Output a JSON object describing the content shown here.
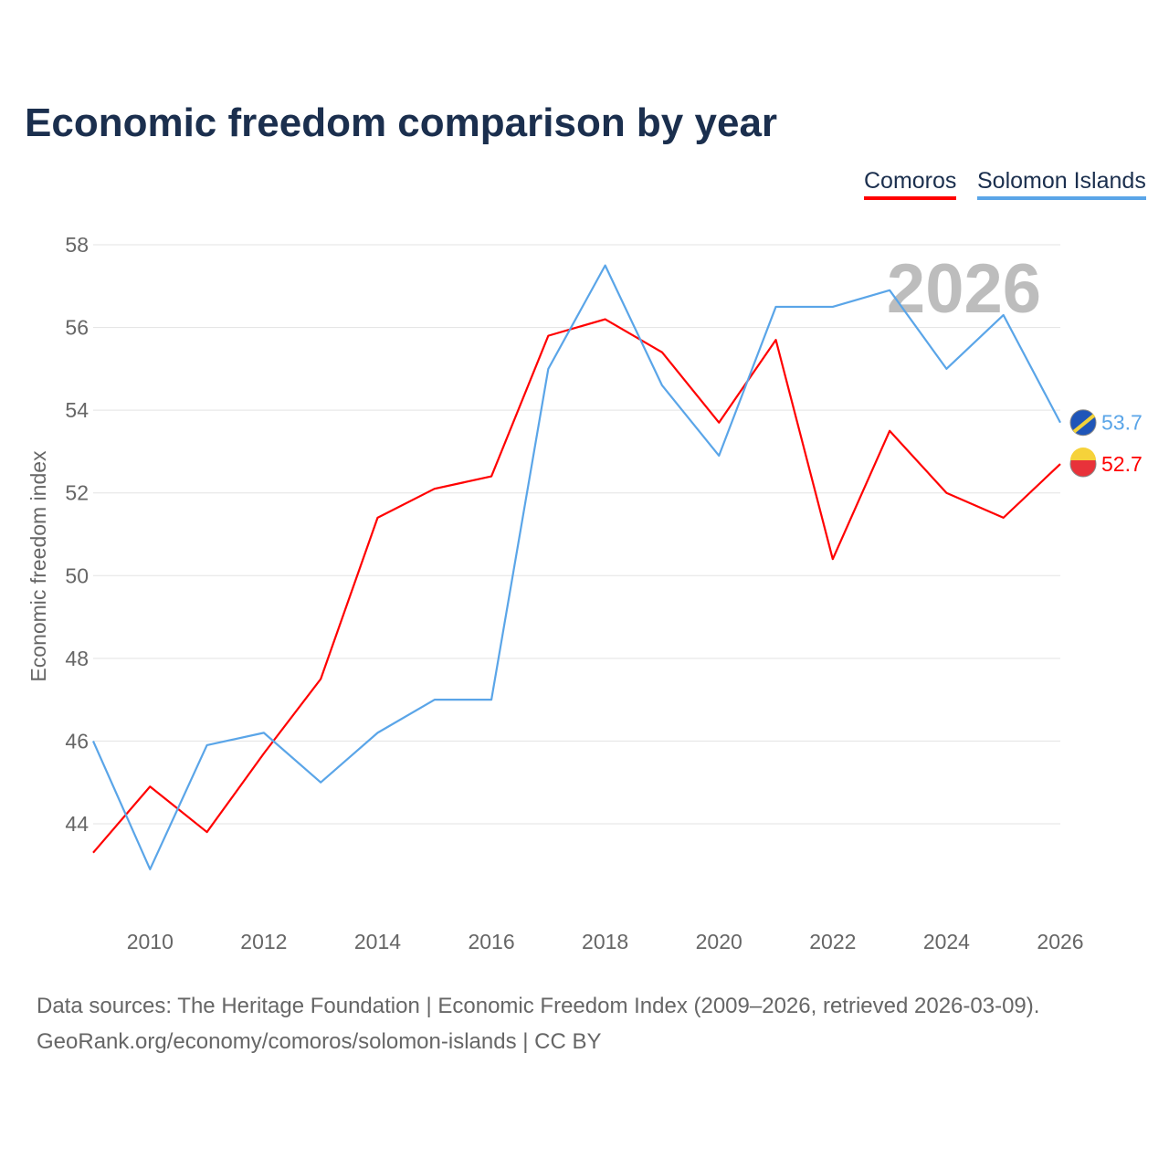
{
  "chart_data": {
    "type": "line",
    "title": "Economic freedom comparison by year",
    "xlabel": "",
    "ylabel": "Economic freedom index",
    "x": [
      2009,
      2010,
      2011,
      2012,
      2013,
      2014,
      2015,
      2016,
      2017,
      2018,
      2019,
      2020,
      2021,
      2022,
      2023,
      2024,
      2025,
      2026
    ],
    "xticks": [
      "2010",
      "2012",
      "2014",
      "2016",
      "2018",
      "2020",
      "2022",
      "2024",
      "2026"
    ],
    "yticks": [
      "44",
      "46",
      "48",
      "50",
      "52",
      "54",
      "56",
      "58"
    ],
    "ylim": [
      42,
      58
    ],
    "grid": true,
    "legend_position": "top-right",
    "watermark_year": "2026",
    "series": [
      {
        "name": "Comoros",
        "color": "#ff0000",
        "end_label": "52.7",
        "values": [
          43.3,
          44.9,
          43.8,
          45.7,
          47.5,
          51.4,
          52.1,
          52.4,
          55.8,
          56.2,
          55.4,
          53.7,
          55.7,
          50.4,
          53.5,
          52.0,
          51.4,
          52.7
        ]
      },
      {
        "name": "Solomon Islands",
        "color": "#5aa5e8",
        "end_label": "53.7",
        "values": [
          46.0,
          42.9,
          45.9,
          46.2,
          45.0,
          46.2,
          47.0,
          47.0,
          55.0,
          57.5,
          54.6,
          52.9,
          56.5,
          56.5,
          56.9,
          55.0,
          56.3,
          53.7
        ]
      }
    ]
  },
  "footer": {
    "line1": "Data sources: The Heritage Foundation | Economic Freedom Index (2009–2026, retrieved 2026-03-09).",
    "line2": "GeoRank.org/economy/comoros/solomon-islands | CC BY"
  }
}
